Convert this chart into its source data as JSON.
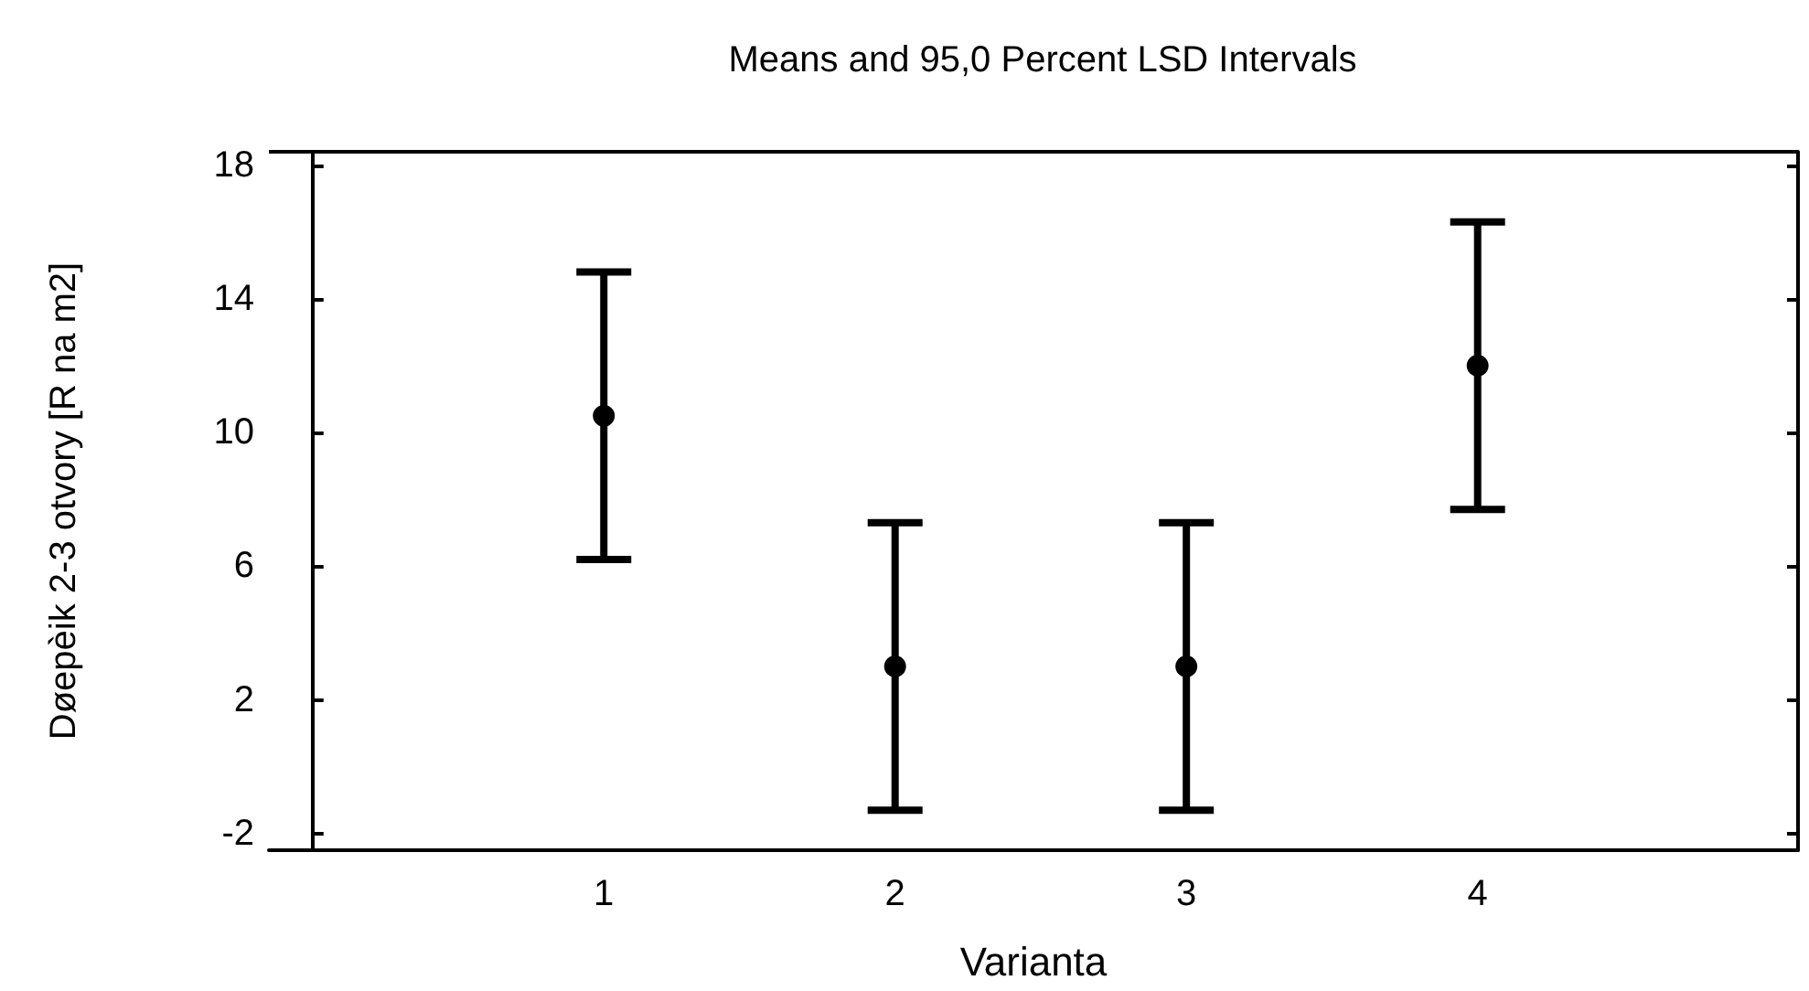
{
  "chart_data": {
    "type": "scatter",
    "title": "Means and 95,0 Percent LSD Intervals",
    "xlabel": "Varianta",
    "ylabel": "Døepèik 2-3 otvory [R na m2]",
    "x": [
      1,
      2,
      3,
      4
    ],
    "values": [
      10.5,
      3.0,
      3.0,
      12.0
    ],
    "errors": [
      4.3,
      4.3,
      4.3,
      4.3
    ],
    "color": "#000000",
    "marker": "circle",
    "xlim": [
      -0.15,
      5.1
    ],
    "xticks": [
      1,
      2,
      3,
      4
    ],
    "ylim": [
      -2.5,
      18.4
    ],
    "yticks": [
      -2,
      2,
      6,
      10,
      14,
      18
    ],
    "grid": false,
    "legend": false
  }
}
